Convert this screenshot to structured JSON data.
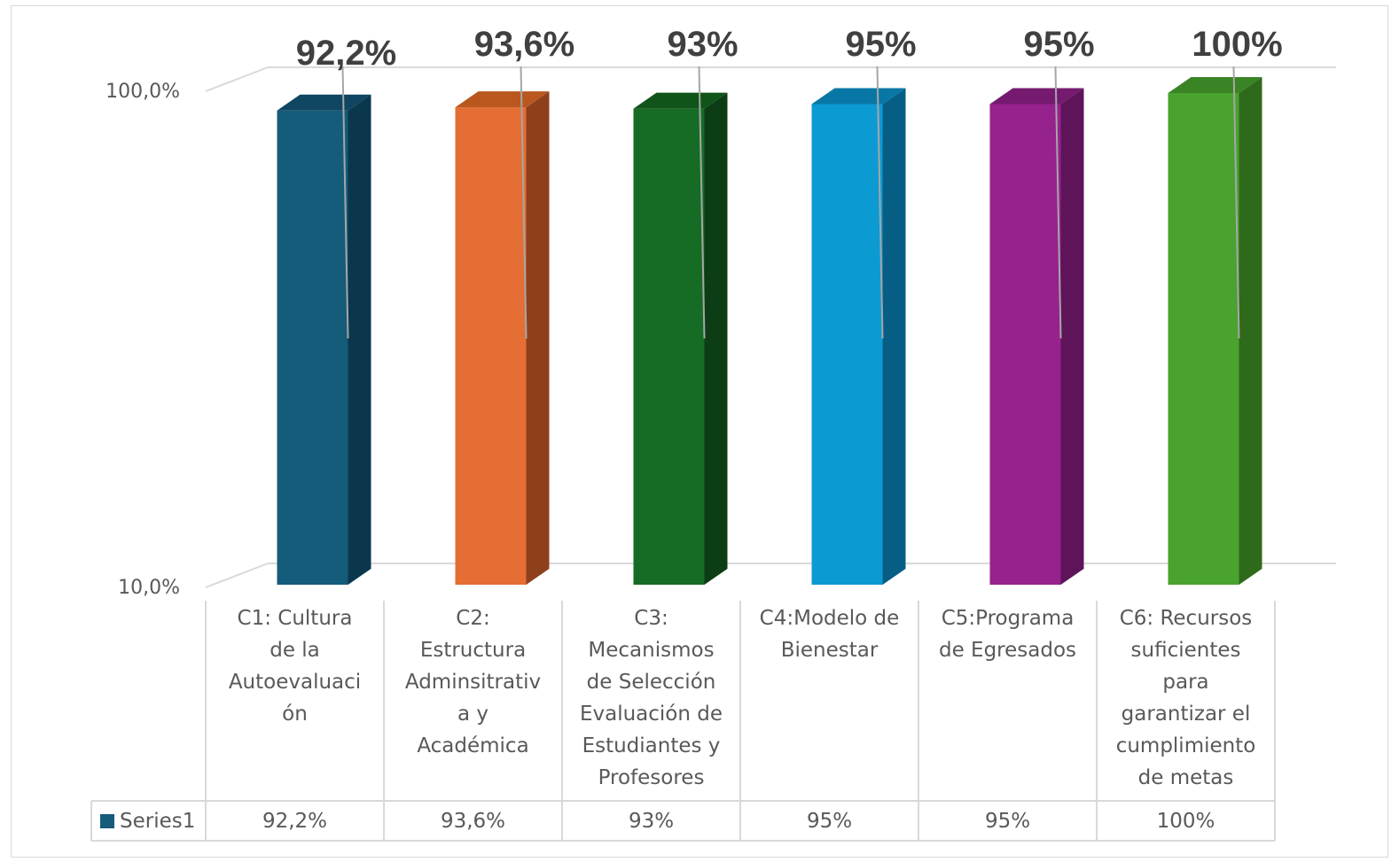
{
  "chart_data": {
    "type": "bar",
    "categories": [
      "C1: Cultura de la Autoevaluación",
      "C2: Estructura Adminsitrativa y Académica",
      "C3: Mecanismos de Selección Evaluación de Estudiantes y Profesores",
      "C4:Modelo de Bienestar",
      "C5:Programa de Egresados",
      "C6: Recursos suficientes para garantizar el cumplimiento de metas"
    ],
    "category_lines": [
      [
        "C1: Cultura",
        "de la",
        "Autoevaluaci",
        "ón"
      ],
      [
        "C2:",
        "Estructura",
        "Adminsitrativ",
        "a y",
        "Académica"
      ],
      [
        "C3:",
        "Mecanismos",
        "de Selección",
        "Evaluación de",
        "Estudiantes y",
        "Profesores"
      ],
      [
        "C4:Modelo de",
        "Bienestar"
      ],
      [
        "C5:Programa",
        "de Egresados"
      ],
      [
        "C6: Recursos",
        "suficientes",
        "para",
        "garantizar el",
        "cumplimiento",
        "de metas"
      ]
    ],
    "series": [
      {
        "name": "Series1",
        "values": [
          92.2,
          93.6,
          93,
          95,
          95,
          100
        ],
        "labels": [
          "92,2%",
          "93,6%",
          "93%",
          "95%",
          "95%",
          "100%"
        ]
      }
    ],
    "bar_colors": [
      "#155b7a",
      "#e46e34",
      "#166b25",
      "#0c9ad3",
      "#96228e",
      "#4aa22f"
    ],
    "bar_side_colors": [
      "#0a374c",
      "#8e401c",
      "#0c3d15",
      "#075e84",
      "#5e1459",
      "#2f6a1b"
    ],
    "bar_top_colors": [
      "#0f4661",
      "#b9571f",
      "#105419",
      "#0977a6",
      "#761a70",
      "#3b8426"
    ],
    "y_ticks": [
      {
        "value": 10,
        "label": "10,0%"
      },
      {
        "value": 100,
        "label": "100,0%"
      }
    ],
    "ylim": [
      10,
      100
    ],
    "y_scale": "log",
    "style": "3d-column",
    "data_table": true,
    "legend_placement": "data-table"
  }
}
